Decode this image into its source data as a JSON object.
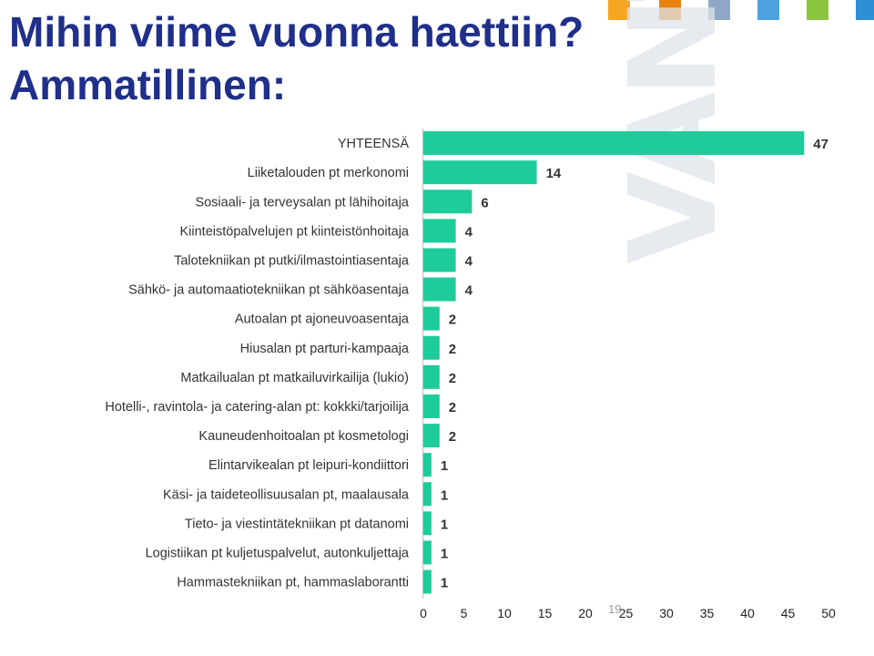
{
  "title_line1": "Mihin viime vuonna haettiin?",
  "title_line2": "Ammatillinen:",
  "watermark_text": "VANTAA",
  "page_number": "19",
  "colors": {
    "title": "#1f2f8a",
    "bar": "#1ecc9b",
    "swatches": [
      "#f5a623",
      "#e8820c",
      "#8fa8c8",
      "#4da3e0",
      "#8cc63f",
      "#2f8fd6"
    ]
  },
  "chart_data": {
    "type": "bar",
    "orientation": "horizontal",
    "categories": [
      "YHTEENSÄ",
      "Liiketalouden pt merkonomi",
      "Sosiaali- ja terveysalan pt lähihoitaja",
      "Kiinteistöpalvelujen pt kiinteistönhoitaja",
      "Talotekniikan pt putki/ilmastointiasentaja",
      "Sähkö- ja automaatiotekniikan pt sähköasentaja",
      "Autoalan pt ajoneuvoasentaja",
      "Hiusalan pt parturi-kampaaja",
      "Matkailualan pt matkailuvirkailija (lukio)",
      "Hotelli-, ravintola- ja catering-alan pt: kokkki/tarjoilija",
      "Kauneudenhoitoalan pt kosmetologi",
      "Elintarvikealan pt leipuri-kondiittori",
      "Käsi- ja taideteollisuusalan pt, maalausala",
      "Tieto- ja viestintätekniikan pt datanomi",
      "Logistiikan pt kuljetuspalvelut, autonkuljettaja",
      "Hammastekniikan pt, hammaslaborantti"
    ],
    "values": [
      47,
      14,
      6,
      4,
      4,
      4,
      2,
      2,
      2,
      2,
      2,
      1,
      1,
      1,
      1,
      1
    ],
    "xlim": [
      0,
      50
    ],
    "xticks": [
      0,
      5,
      10,
      15,
      20,
      25,
      30,
      35,
      40,
      45,
      50
    ],
    "data_labels": true,
    "grid": false
  }
}
